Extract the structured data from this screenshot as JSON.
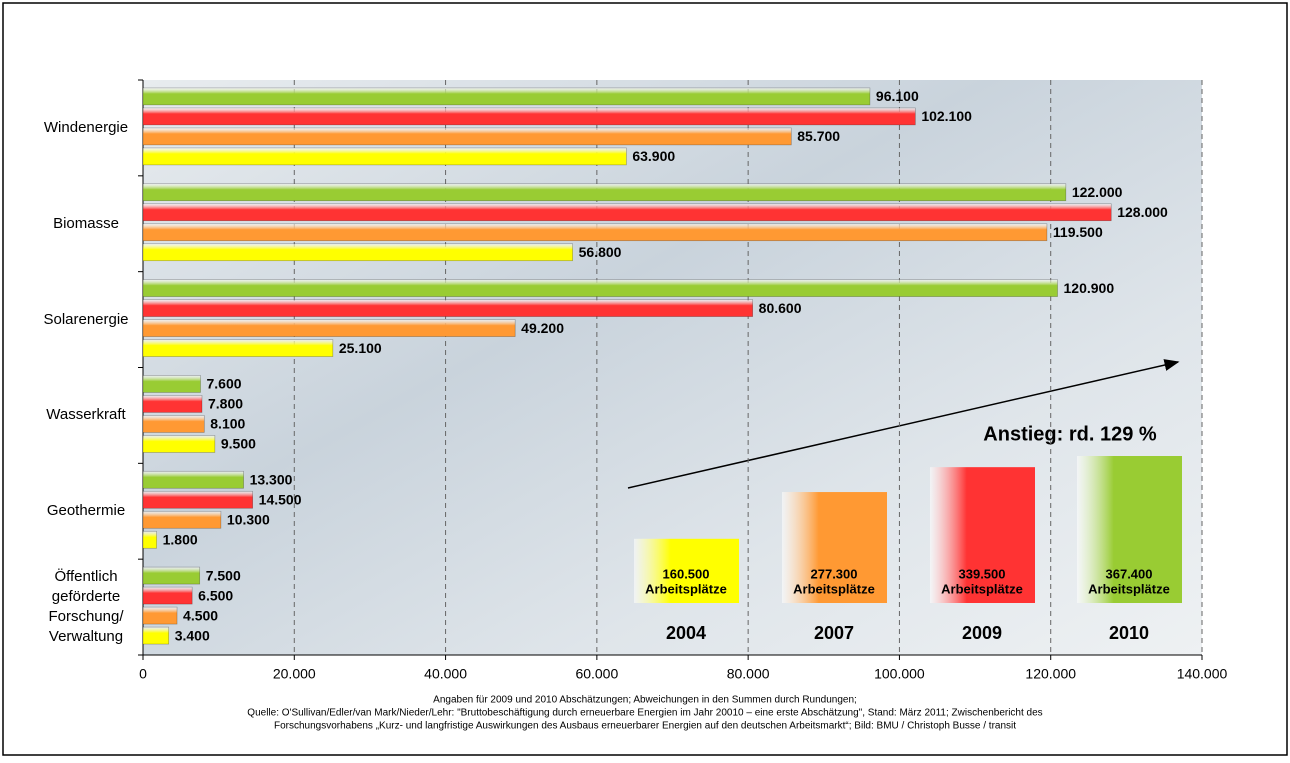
{
  "chart_data": {
    "type": "bar",
    "orientation": "horizontal",
    "categories": [
      "Windenergie",
      "Biomasse",
      "Solarenergie",
      "Wasserkraft",
      "Geothermie",
      "Öffentlich geförderte Forschung/ Verwaltung"
    ],
    "series": [
      {
        "name": "2004",
        "color": "#ffff00",
        "values": [
          63900,
          56800,
          25100,
          9500,
          1800,
          3400
        ],
        "value_labels": [
          "63.900",
          "56.800",
          "25.100",
          "9.500",
          "1.800",
          "3.400"
        ]
      },
      {
        "name": "2007",
        "color": "#ff9933",
        "values": [
          85700,
          119500,
          49200,
          8100,
          10300,
          4500
        ],
        "value_labels": [
          "85.700",
          "119.500",
          "49.200",
          "8.100",
          "10.300",
          "4.500"
        ]
      },
      {
        "name": "2009",
        "color": "#ff3333",
        "values": [
          102100,
          128000,
          80600,
          7800,
          14500,
          6500
        ],
        "value_labels": [
          "102.100",
          "128.000",
          "80.600",
          "7.800",
          "14.500",
          "6.500"
        ]
      },
      {
        "name": "2010",
        "color": "#99cc33",
        "values": [
          96100,
          122000,
          120900,
          7600,
          13300,
          7500
        ],
        "value_labels": [
          "96.100",
          "122.000",
          "120.900",
          "7.600",
          "13.300",
          "7.500"
        ]
      }
    ],
    "xlim": [
      0,
      140000
    ],
    "xticks": [
      0,
      {
        "value": 20000,
        "label": "20.000"
      },
      {
        "value": 40000,
        "label": "40.000"
      },
      {
        "value": 60000,
        "label": "60.000"
      },
      {
        "value": 80000,
        "label": "80.000"
      },
      {
        "value": 100000,
        "label": "100.000"
      },
      {
        "value": 120000,
        "label": "120.000"
      },
      {
        "value": 140000,
        "label": "140.000"
      }
    ],
    "grid": true,
    "totals": {
      "values": [
        160500,
        277300,
        339500,
        367400
      ],
      "value_labels": [
        "160.500",
        "277.300",
        "339.500",
        "367.400"
      ],
      "unit": "Arbeitsplätze"
    },
    "annotation": "Anstieg: rd. 129 %",
    "notes": [
      "Angaben für 2009 und 2010 Abschätzungen; Abweichungen in den Summen durch Rundungen;",
      "Quelle: O'Sullivan/Edler/van Mark/Nieder/Lehr: \"Bruttobeschäftigung durch erneuerbare Energien im Jahr 20010 – eine erste Abschätzung\", Stand: März 2011; Zwischenbericht des",
      "Forschungsvorhabens „Kurz- und langfristige Auswirkungen des Ausbaus erneuerbarer Energien auf den deutschen Arbeitsmarkt“; Bild: BMU / Christoph Busse / transit"
    ]
  }
}
